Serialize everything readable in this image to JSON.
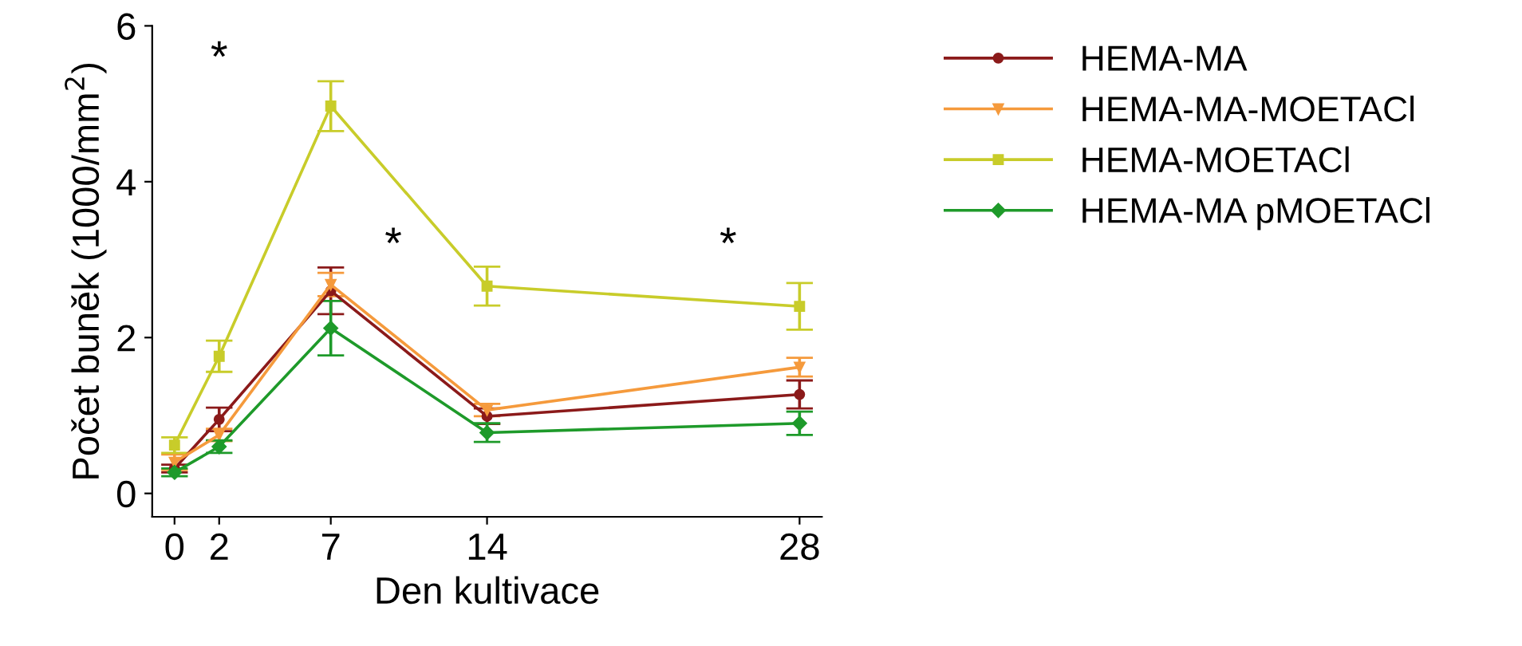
{
  "chart_data": {
    "type": "line",
    "xlabel": "Den kultivace",
    "ylabel": "Počet buněk (1000/mm$^{2}$)",
    "x": [
      0,
      2,
      7,
      14,
      28
    ],
    "xlim": [
      -1,
      29
    ],
    "xticks": [
      0,
      2,
      7,
      14,
      28
    ],
    "ylim": [
      -0.3,
      6
    ],
    "yticks": [
      0,
      2,
      4,
      6
    ],
    "grid": false,
    "legend": "top right",
    "series": [
      {
        "name": "HEMA-MA",
        "color": "#8b1a1a",
        "marker": "circle",
        "values": [
          0.32,
          0.95,
          2.6,
          0.99,
          1.27
        ],
        "errors": [
          0.05,
          0.15,
          0.3,
          0.1,
          0.18
        ]
      },
      {
        "name": "HEMA-MA-MOETACl",
        "color": "#f59a3c",
        "marker": "triangle",
        "values": [
          0.4,
          0.75,
          2.68,
          1.07,
          1.62
        ],
        "errors": [
          0.1,
          0.08,
          0.15,
          0.08,
          0.12
        ]
      },
      {
        "name": "HEMA-MOETACl",
        "color": "#c8cc2a",
        "marker": "square",
        "values": [
          0.62,
          1.76,
          4.97,
          2.66,
          2.4
        ],
        "errors": [
          0.1,
          0.2,
          0.32,
          0.25,
          0.3
        ]
      },
      {
        "name": "HEMA-MA pMOETACl",
        "color": "#1e9a2a",
        "marker": "diamond",
        "values": [
          0.27,
          0.6,
          2.12,
          0.78,
          0.9
        ],
        "errors": [
          0.05,
          0.08,
          0.35,
          0.12,
          0.15
        ]
      }
    ],
    "annotations": [
      "*",
      "*",
      "*"
    ]
  }
}
